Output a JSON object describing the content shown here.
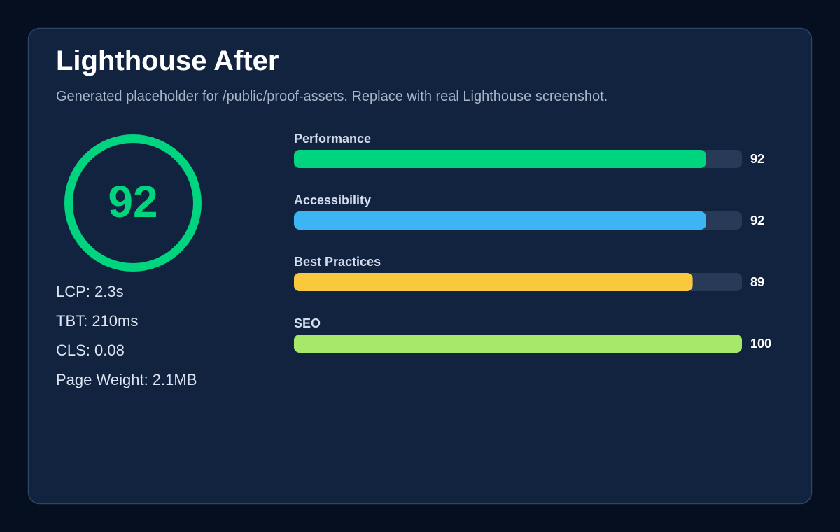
{
  "header": {
    "title": "Lighthouse After",
    "subtitle": "Generated placeholder for /public/proof-assets. Replace with real Lighthouse screenshot."
  },
  "score": {
    "value": 92,
    "color": "#00d47e"
  },
  "metrics": [
    "LCP: 2.3s",
    "TBT: 210ms",
    "CLS: 0.08",
    "Page Weight: 2.1MB"
  ],
  "chart_data": {
    "type": "bar",
    "orientation": "horizontal",
    "categories": [
      "Performance",
      "Accessibility",
      "Best Practices",
      "SEO"
    ],
    "values": [
      92,
      92,
      89,
      100
    ],
    "colors": [
      "#00d47e",
      "#3db5f5",
      "#f8c93c",
      "#a6e86a"
    ],
    "xlim": [
      0,
      100
    ]
  }
}
